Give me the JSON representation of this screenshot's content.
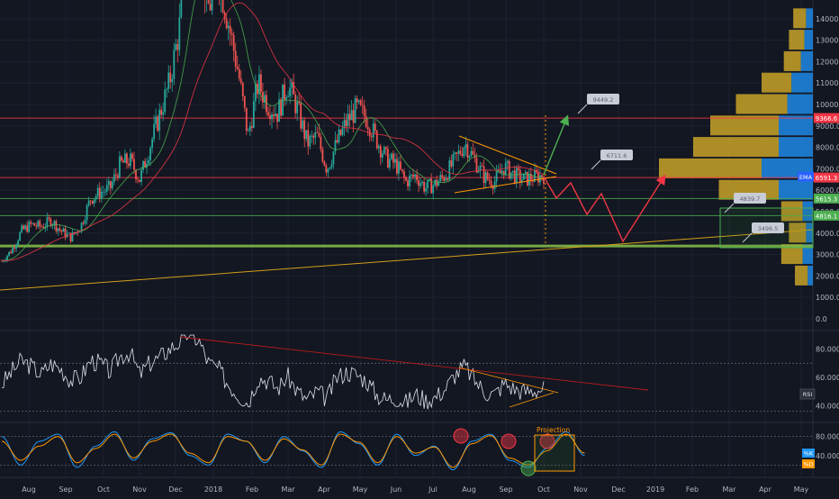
{
  "chart_data": [
    {
      "type": "candlestick",
      "title": "",
      "series_start": "2017-07-15",
      "price_ticks": [
        "0.0",
        "1000.0",
        "2000.0",
        "3000.0",
        "4000.0",
        "5000.0",
        "6000.0",
        "7000.0",
        "8000.0",
        "9000.0",
        "10000.0",
        "11000.0",
        "12000.0",
        "13000.0",
        "14000.0"
      ],
      "x_labels": [
        "Aug",
        "Sep",
        "Oct",
        "Nov",
        "Dec",
        "2018",
        "Feb",
        "Mar",
        "Apr",
        "May",
        "Jun",
        "Jul",
        "Aug",
        "Sep",
        "Oct",
        "Nov",
        "Dec",
        "2019",
        "Feb",
        "Mar",
        "Apr",
        "May"
      ],
      "ylim": [
        0,
        15000
      ],
      "grid": true,
      "close_series_weekly": [
        2700,
        3200,
        4100,
        4400,
        4300,
        4600,
        4100,
        3800,
        4300,
        5600,
        5900,
        6100,
        7200,
        7400,
        6500,
        8000,
        9500,
        11000,
        13500,
        19000,
        17000,
        14500,
        16000,
        13800,
        11500,
        8500,
        11000,
        10000,
        9600,
        11000,
        9800,
        8200,
        8500,
        7000,
        8200,
        9200,
        9800,
        9400,
        8400,
        7500,
        7200,
        6400,
        6700,
        6100,
        6300,
        6700,
        7400,
        8200,
        7400,
        6600,
        6400,
        7100,
        6700,
        6500,
        6600,
        6700
      ],
      "horizontal_levels": [
        {
          "value": 9366.6,
          "color": "#f23645"
        },
        {
          "value": 6591.3,
          "color": "#f23645"
        },
        {
          "value": 5615.3,
          "color": "#4caf50"
        },
        {
          "value": 4816.1,
          "color": "#4caf50"
        },
        {
          "value": 3400,
          "color": "#8bc34a"
        }
      ],
      "price_labels": [
        {
          "text": "9366.6",
          "value": 9366.6,
          "color": "#f23645"
        },
        {
          "text": "6591.3",
          "value": 6591.3,
          "color": "#f23645"
        },
        {
          "text": "5615.3",
          "value": 5615.3,
          "color": "#4caf50"
        },
        {
          "text": "4816.1",
          "value": 4816.1,
          "color": "#4caf50"
        }
      ],
      "indicator_tags": [
        {
          "text": "EMA",
          "color": "#2962ff"
        }
      ],
      "projection_callouts": [
        {
          "text": "9449.2",
          "value": 9449.2
        },
        {
          "text": "6711.6",
          "value": 6711.6
        },
        {
          "text": "4839.7",
          "value": 4839.7
        },
        {
          "text": "3496.5",
          "value": 3496.5
        }
      ],
      "volume_profile": [
        {
          "price": 14000,
          "buy": 15,
          "sell": 8
        },
        {
          "price": 13000,
          "buy": 18,
          "sell": 10
        },
        {
          "price": 12000,
          "buy": 20,
          "sell": 14
        },
        {
          "price": 11000,
          "buy": 35,
          "sell": 25
        },
        {
          "price": 10000,
          "buy": 60,
          "sell": 30
        },
        {
          "price": 9000,
          "buy": 80,
          "sell": 40
        },
        {
          "price": 8000,
          "buy": 100,
          "sell": 40
        },
        {
          "price": 7000,
          "buy": 120,
          "sell": 60
        },
        {
          "price": 6000,
          "buy": 70,
          "sell": 40
        },
        {
          "price": 5000,
          "buy": 25,
          "sell": 12
        },
        {
          "price": 4000,
          "buy": 20,
          "sell": 8
        },
        {
          "price": 3000,
          "buy": 25,
          "sell": 12
        },
        {
          "price": 2000,
          "buy": 15,
          "sell": 6
        }
      ]
    },
    {
      "type": "line",
      "name": "RSI",
      "ticks": [
        "40.0000",
        "60.0000",
        "80.0000"
      ],
      "ylim": [
        30,
        90
      ],
      "values": [
        55,
        64,
        72,
        68,
        62,
        70,
        66,
        58,
        60,
        72,
        70,
        64,
        75,
        78,
        62,
        70,
        74,
        80,
        85,
        92,
        86,
        70,
        66,
        55,
        48,
        42,
        60,
        58,
        52,
        61,
        50,
        44,
        50,
        45,
        60,
        64,
        62,
        58,
        48,
        44,
        46,
        42,
        48,
        44,
        46,
        52,
        62,
        68,
        58,
        50,
        48,
        56,
        52,
        50,
        51,
        52
      ]
    },
    {
      "type": "line",
      "name": "Stoch",
      "ticks": [
        "40.0000",
        "80.0000"
      ],
      "ylim": [
        0,
        100
      ],
      "annotation": "Projection",
      "series": [
        {
          "name": "%K",
          "color": "#2196f3",
          "values": [
            80,
            20,
            70,
            85,
            15,
            60,
            90,
            30,
            75,
            88,
            40,
            20,
            85,
            70,
            25,
            80,
            50,
            15,
            90,
            65,
            20,
            85,
            40,
            60,
            10,
            70,
            85,
            30,
            15,
            55,
            90,
            40
          ]
        },
        {
          "name": "%D",
          "color": "#ff9800",
          "values": [
            70,
            30,
            60,
            80,
            25,
            55,
            85,
            35,
            70,
            85,
            45,
            25,
            80,
            70,
            30,
            75,
            52,
            20,
            85,
            68,
            25,
            80,
            45,
            58,
            15,
            65,
            82,
            35,
            20,
            50,
            85,
            45
          ]
        }
      ]
    }
  ]
}
